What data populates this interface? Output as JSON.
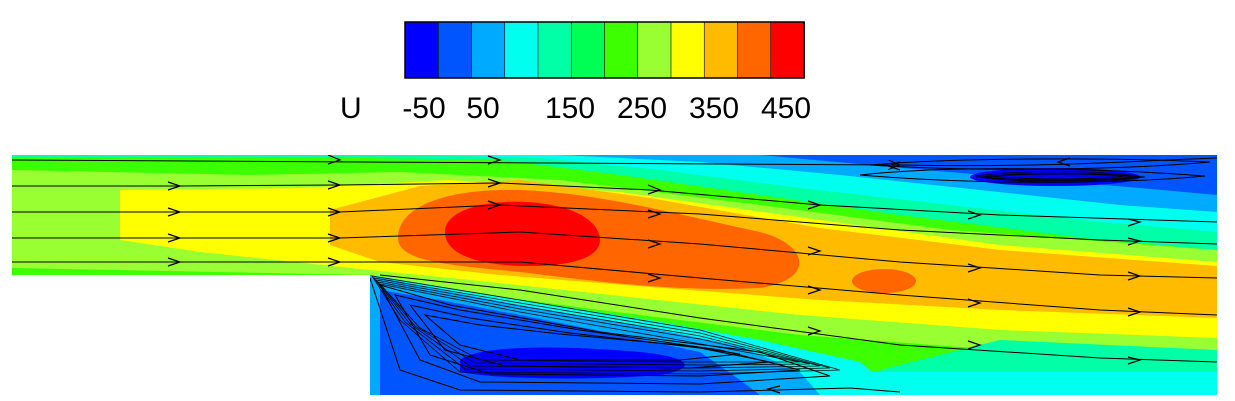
{
  "legend": {
    "variable": "U",
    "tick_labels": [
      "-50",
      "50",
      "150",
      "250",
      "350",
      "450"
    ],
    "colors": [
      "#0000ff",
      "#0055ff",
      "#00aaff",
      "#00ffee",
      "#00ffa6",
      "#00ff55",
      "#3cff00",
      "#99ff33",
      "#ffff00",
      "#ffbb00",
      "#ff6600",
      "#ff0000"
    ]
  },
  "figure": {
    "type": "contour-with-streamlines",
    "geometry": "backward-facing-step"
  }
}
